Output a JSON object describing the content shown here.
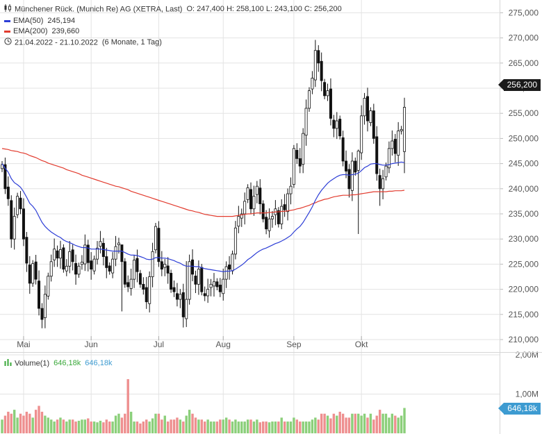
{
  "header": {
    "instrument": "Münchener Rück. (Munich Re) AG (XETRA, Last)",
    "ohlc": "O: 247,400  H: 258,100  L: 243,100  C: 256,200",
    "ema50_label": "EMA(50)",
    "ema50_value": "245,194",
    "ema200_label": "EMA(200)",
    "ema200_value": "239,660",
    "range": "21.04.2022 - 21.10.2022",
    "interval": "(6 Monate, 1 Tag)"
  },
  "volume_legend": {
    "label": "Volume(1)",
    "value1": "646,18k",
    "value2": "646,18k"
  },
  "price_axis": {
    "ticks": [
      "210,000",
      "215,000",
      "220,000",
      "225,000",
      "230,000",
      "235,000",
      "240,000",
      "245,000",
      "250,000",
      "255,000",
      "260,000",
      "265,000",
      "270,000",
      "275,000"
    ],
    "last_price": "256,200"
  },
  "volume_axis": {
    "ticks": [
      "1,00M",
      "2,00M"
    ],
    "last_volume": "646,18k"
  },
  "months": [
    "Mai",
    "Jun",
    "Jul",
    "Aug",
    "Sep",
    "Okt"
  ],
  "colors": {
    "up": "#3aa83a",
    "down": "#000000",
    "ema50": "#2c3dd6",
    "ema200": "#e23b2e",
    "vol_up": "#8bcf7a",
    "vol_down": "#ee8f8f",
    "grid": "#e3e3e3"
  },
  "chart_data": {
    "type": "candlestick",
    "x": [
      "2022-04-21",
      "2022-04-22",
      "2022-04-25",
      "2022-04-26",
      "2022-04-27",
      "2022-04-28",
      "2022-04-29",
      "2022-05-02",
      "2022-05-03",
      "2022-05-04",
      "2022-05-05",
      "2022-05-06",
      "2022-05-09",
      "2022-05-10",
      "2022-05-11",
      "2022-05-12",
      "2022-05-13",
      "2022-05-16",
      "2022-05-17",
      "2022-05-18",
      "2022-05-19",
      "2022-05-20",
      "2022-05-23",
      "2022-05-24",
      "2022-05-25",
      "2022-05-26",
      "2022-05-27",
      "2022-05-30",
      "2022-05-31",
      "2022-06-01",
      "2022-06-02",
      "2022-06-03",
      "2022-06-06",
      "2022-06-07",
      "2022-06-08",
      "2022-06-09",
      "2022-06-10",
      "2022-06-13",
      "2022-06-14",
      "2022-06-15",
      "2022-06-16",
      "2022-06-17",
      "2022-06-20",
      "2022-06-21",
      "2022-06-22",
      "2022-06-23",
      "2022-06-24",
      "2022-06-27",
      "2022-06-28",
      "2022-06-29",
      "2022-06-30",
      "2022-07-01",
      "2022-07-04",
      "2022-07-05",
      "2022-07-06",
      "2022-07-07",
      "2022-07-08",
      "2022-07-11",
      "2022-07-12",
      "2022-07-13",
      "2022-07-14",
      "2022-07-15",
      "2022-07-18",
      "2022-07-19",
      "2022-07-20",
      "2022-07-21",
      "2022-07-22",
      "2022-07-25",
      "2022-07-26",
      "2022-07-27",
      "2022-07-28",
      "2022-07-29",
      "2022-08-01",
      "2022-08-02",
      "2022-08-03",
      "2022-08-04",
      "2022-08-05",
      "2022-08-08",
      "2022-08-09",
      "2022-08-10",
      "2022-08-11",
      "2022-08-12",
      "2022-08-15",
      "2022-08-16",
      "2022-08-17",
      "2022-08-18",
      "2022-08-19",
      "2022-08-22",
      "2022-08-23",
      "2022-08-24",
      "2022-08-25",
      "2022-08-26",
      "2022-08-29",
      "2022-08-30",
      "2022-08-31",
      "2022-09-01",
      "2022-09-02",
      "2022-09-05",
      "2022-09-06",
      "2022-09-07",
      "2022-09-08",
      "2022-09-09",
      "2022-09-12",
      "2022-09-13",
      "2022-09-14",
      "2022-09-15",
      "2022-09-16",
      "2022-09-19",
      "2022-09-20",
      "2022-09-21",
      "2022-09-22",
      "2022-09-23",
      "2022-09-26",
      "2022-09-27",
      "2022-09-28",
      "2022-09-29",
      "2022-09-30",
      "2022-10-03",
      "2022-10-04",
      "2022-10-05",
      "2022-10-06",
      "2022-10-07",
      "2022-10-10",
      "2022-10-11",
      "2022-10-12",
      "2022-10-13",
      "2022-10-14",
      "2022-10-17",
      "2022-10-18",
      "2022-10-19",
      "2022-10-20",
      "2022-10-21"
    ],
    "close": [
      244.8,
      240.0,
      238.0,
      230.0,
      234.5,
      238.5,
      236.0,
      230.0,
      225.2,
      221.2,
      225.1,
      222.0,
      216.2,
      214.0,
      219.0,
      222.6,
      225.5,
      228.0,
      226.2,
      227.9,
      224.0,
      224.6,
      227.5,
      225.5,
      223.0,
      224.6,
      225.4,
      228.8,
      225.3,
      224.0,
      226.0,
      228.2,
      229.5,
      226.5,
      224.3,
      223.6,
      226.0,
      228.5,
      229.2,
      225.5,
      221.0,
      220.5,
      222.0,
      225.8,
      223.5,
      221.0,
      220.0,
      217.5,
      222.5,
      227.5,
      232.5,
      225.5,
      224.0,
      225.0,
      223.2,
      220.0,
      219.5,
      218.0,
      219.0,
      214.5,
      218.0,
      225.5,
      223.0,
      221.0,
      224.0,
      219.5,
      218.7,
      220.0,
      221.0,
      221.5,
      220.5,
      219.5,
      222.0,
      224.5,
      224.0,
      227.0,
      232.2,
      234.5,
      235.0,
      237.5,
      240.2,
      236.0,
      238.5,
      240.5,
      237.0,
      234.0,
      232.0,
      234.0,
      234.5,
      236.0,
      233.0,
      236.5,
      235.8,
      239.0,
      240.5,
      248.0,
      246.0,
      244.5,
      251.0,
      256.0,
      259.5,
      262.0,
      267.5,
      265.0,
      261.5,
      258.5,
      259.5,
      254.0,
      252.0,
      253.5,
      250.5,
      245.5,
      243.5,
      240.0,
      245.5,
      243.3,
      247.5,
      254.5,
      258.0,
      253.5,
      255.5,
      250.0,
      243.0,
      240.0,
      242.0,
      244.5,
      248.0,
      249.5,
      247.0,
      251.5,
      251.8,
      256.2
    ],
    "ema50": [
      245.0,
      244.1,
      243.3,
      242.0,
      241.2,
      240.8,
      240.3,
      239.4,
      238.3,
      237.1,
      236.5,
      235.7,
      234.5,
      233.3,
      232.5,
      231.9,
      231.4,
      231.0,
      230.6,
      230.3,
      229.8,
      229.5,
      229.3,
      229.0,
      228.7,
      228.5,
      228.3,
      228.3,
      228.2,
      228.0,
      228.0,
      228.0,
      228.0,
      227.9,
      227.8,
      227.7,
      227.6,
      227.6,
      227.6,
      227.6,
      227.3,
      227.0,
      226.8,
      226.8,
      226.7,
      226.5,
      226.3,
      226.0,
      225.9,
      226.0,
      226.3,
      226.3,
      226.2,
      226.2,
      226.1,
      225.9,
      225.7,
      225.4,
      225.2,
      224.8,
      224.6,
      224.6,
      224.6,
      224.5,
      224.5,
      224.3,
      224.1,
      224.0,
      223.9,
      223.8,
      223.7,
      223.6,
      223.5,
      223.6,
      223.6,
      223.7,
      224.0,
      224.4,
      224.8,
      225.3,
      225.9,
      226.3,
      226.8,
      227.3,
      227.7,
      228.0,
      228.2,
      228.5,
      228.8,
      229.1,
      229.3,
      229.6,
      229.9,
      230.3,
      230.7,
      231.4,
      232.0,
      232.5,
      233.3,
      234.3,
      235.3,
      236.4,
      237.7,
      238.8,
      239.7,
      240.4,
      241.1,
      241.6,
      242.0,
      242.4,
      242.7,
      242.8,
      242.8,
      242.7,
      242.8,
      242.9,
      243.1,
      243.6,
      244.2,
      244.5,
      244.9,
      245.0,
      245.0,
      244.8,
      244.7,
      244.7,
      244.8,
      245.0,
      245.1,
      245.2,
      245.3,
      245.2
    ],
    "ema200": [
      248.0,
      247.9,
      247.8,
      247.6,
      247.5,
      247.4,
      247.2,
      247.1,
      246.9,
      246.6,
      246.4,
      246.2,
      245.9,
      245.6,
      245.4,
      245.1,
      244.9,
      244.7,
      244.5,
      244.3,
      244.1,
      243.8,
      243.6,
      243.4,
      243.2,
      243.0,
      242.7,
      242.5,
      242.3,
      242.1,
      241.9,
      241.7,
      241.5,
      241.3,
      241.1,
      240.9,
      240.7,
      240.5,
      240.4,
      240.2,
      240.0,
      239.8,
      239.5,
      239.3,
      239.1,
      238.9,
      238.7,
      238.5,
      238.3,
      238.1,
      237.9,
      237.7,
      237.5,
      237.3,
      237.1,
      236.9,
      236.7,
      236.5,
      236.3,
      236.1,
      235.9,
      235.7,
      235.6,
      235.4,
      235.3,
      235.1,
      234.9,
      234.8,
      234.7,
      234.6,
      234.5,
      234.5,
      234.5,
      234.5,
      234.5,
      234.5,
      234.6,
      234.7,
      234.8,
      234.9,
      235.0,
      235.0,
      235.1,
      235.2,
      235.2,
      235.2,
      235.2,
      235.3,
      235.3,
      235.4,
      235.4,
      235.5,
      235.5,
      235.6,
      235.7,
      235.8,
      236.0,
      236.1,
      236.3,
      236.5,
      236.7,
      237.0,
      237.2,
      237.5,
      237.7,
      237.9,
      238.0,
      238.2,
      238.4,
      238.5,
      238.6,
      238.7,
      238.7,
      238.7,
      238.8,
      238.8,
      238.9,
      239.0,
      239.1,
      239.2,
      239.3,
      239.4,
      239.4,
      239.4,
      239.4,
      239.4,
      239.5,
      239.5,
      239.6,
      239.6,
      239.6,
      239.7
    ],
    "volume_millions": [
      0.35,
      0.45,
      0.55,
      0.5,
      0.6,
      0.4,
      0.5,
      0.45,
      0.55,
      0.5,
      0.4,
      0.6,
      0.7,
      0.55,
      0.45,
      0.4,
      0.35,
      0.3,
      0.35,
      0.4,
      0.35,
      0.3,
      0.35,
      0.35,
      0.3,
      0.32,
      0.35,
      0.35,
      0.38,
      0.3,
      0.3,
      0.28,
      0.32,
      0.28,
      0.35,
      0.3,
      0.3,
      0.45,
      0.5,
      0.4,
      0.5,
      1.38,
      0.55,
      0.3,
      0.3,
      0.25,
      0.3,
      0.35,
      0.3,
      0.38,
      0.5,
      0.5,
      0.35,
      0.45,
      0.3,
      0.35,
      0.35,
      0.4,
      0.35,
      0.3,
      0.45,
      0.6,
      0.5,
      0.4,
      0.35,
      0.35,
      0.3,
      0.35,
      0.3,
      0.3,
      0.3,
      0.35,
      0.35,
      0.4,
      0.35,
      0.3,
      0.35,
      0.3,
      0.3,
      0.3,
      0.35,
      0.35,
      0.3,
      0.35,
      0.28,
      0.3,
      0.3,
      0.28,
      0.3,
      0.3,
      0.3,
      0.4,
      0.3,
      0.3,
      0.3,
      0.4,
      0.35,
      0.3,
      0.3,
      0.3,
      0.3,
      0.35,
      0.4,
      0.35,
      0.5,
      0.5,
      0.45,
      0.38,
      0.5,
      0.45,
      0.55,
      0.5,
      0.4,
      0.4,
      0.5,
      0.5,
      0.5,
      0.45,
      0.5,
      0.4,
      0.5,
      0.35,
      0.45,
      0.6,
      0.5,
      0.5,
      0.4,
      0.5,
      0.45,
      0.4,
      0.45,
      0.646
    ],
    "ylim": [
      208,
      276
    ]
  }
}
